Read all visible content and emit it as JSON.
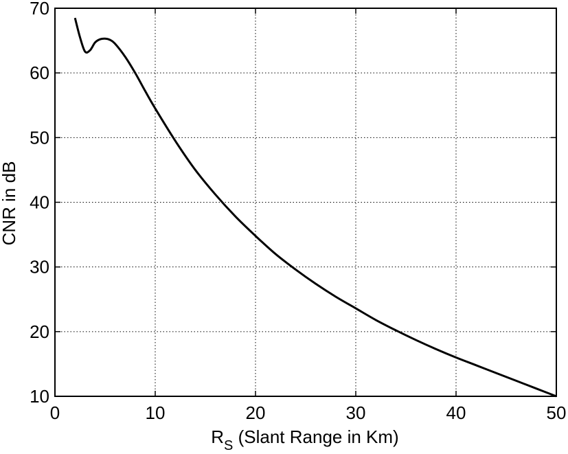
{
  "chart_data": {
    "type": "line",
    "title": "",
    "xlabel": "R",
    "xlabel_sub": "S",
    "xlabel_rest": " (Slant Range in Km)",
    "ylabel": "CNR in dB",
    "xlim": [
      0,
      50
    ],
    "ylim": [
      10,
      70
    ],
    "xticks": [
      0,
      10,
      20,
      30,
      40,
      50
    ],
    "yticks": [
      10,
      20,
      30,
      40,
      50,
      60,
      70
    ],
    "grid": true,
    "grid_style": "dotted",
    "line_color": "#000000",
    "series": [
      {
        "x": [
          2,
          2.5,
          3,
          3.5,
          4,
          4.5,
          5,
          5.5,
          6,
          7,
          8,
          9,
          10,
          12,
          14,
          16,
          18,
          20,
          22,
          24,
          26,
          28,
          30,
          32,
          34,
          36,
          38,
          40,
          42,
          44,
          46,
          48,
          50
        ],
        "values": [
          68.5,
          65.5,
          63.3,
          63.5,
          64.7,
          65.2,
          65.3,
          65.1,
          64.5,
          62.5,
          60.0,
          57.2,
          54.5,
          49.5,
          45.0,
          41.2,
          37.8,
          34.8,
          32.0,
          29.6,
          27.4,
          25.4,
          23.6,
          21.8,
          20.2,
          18.7,
          17.3,
          16.0,
          14.8,
          13.6,
          12.4,
          11.2,
          10.0
        ]
      }
    ]
  }
}
